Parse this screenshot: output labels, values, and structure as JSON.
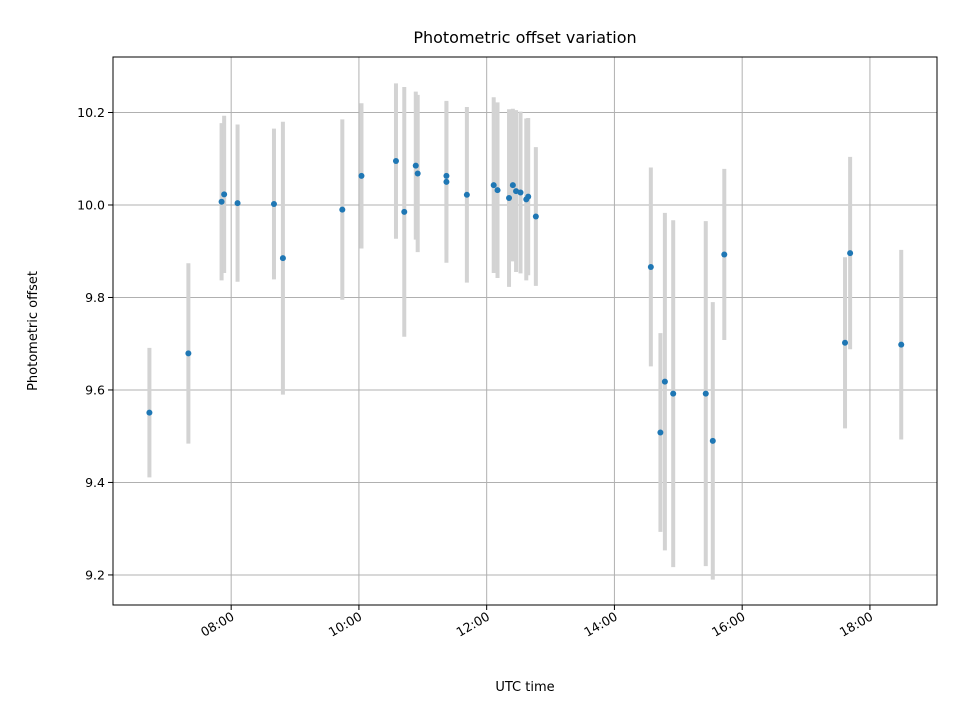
{
  "chart_data": {
    "type": "scatter",
    "title": "Photometric offset variation",
    "xlabel": "UTC time",
    "ylabel": "Photometric offset",
    "x_unit": "hours UTC",
    "xlim": [
      6.15,
      19.05
    ],
    "ylim": [
      9.135,
      10.32
    ],
    "x_ticks": [
      {
        "value": 8,
        "label": "08:00"
      },
      {
        "value": 10,
        "label": "10:00"
      },
      {
        "value": 12,
        "label": "12:00"
      },
      {
        "value": 14,
        "label": "14:00"
      },
      {
        "value": 16,
        "label": "16:00"
      },
      {
        "value": 18,
        "label": "18:00"
      }
    ],
    "y_ticks": [
      {
        "value": 9.2,
        "label": "9.2"
      },
      {
        "value": 9.4,
        "label": "9.4"
      },
      {
        "value": 9.6,
        "label": "9.6"
      },
      {
        "value": 9.8,
        "label": "9.8"
      },
      {
        "value": 10.0,
        "label": "10.0"
      },
      {
        "value": 10.2,
        "label": "10.2"
      }
    ],
    "grid": true,
    "point_color": "#1f77b4",
    "errorbar_color": "#d3d3d3",
    "points": [
      {
        "x": 6.72,
        "y": 9.551,
        "yerr": 0.14
      },
      {
        "x": 7.33,
        "y": 9.679,
        "yerr": 0.195
      },
      {
        "x": 7.85,
        "y": 10.007,
        "yerr": 0.17
      },
      {
        "x": 7.89,
        "y": 10.023,
        "yerr": 0.17
      },
      {
        "x": 8.1,
        "y": 10.004,
        "yerr": 0.17
      },
      {
        "x": 8.67,
        "y": 10.002,
        "yerr": 0.163
      },
      {
        "x": 8.81,
        "y": 9.885,
        "yerr": 0.295
      },
      {
        "x": 9.74,
        "y": 9.99,
        "yerr": 0.195
      },
      {
        "x": 10.04,
        "y": 10.063,
        "yerr": 0.157
      },
      {
        "x": 10.58,
        "y": 10.095,
        "yerr": 0.168
      },
      {
        "x": 10.71,
        "y": 9.985,
        "yerr": 0.27
      },
      {
        "x": 10.89,
        "y": 10.085,
        "yerr": 0.16
      },
      {
        "x": 10.92,
        "y": 10.068,
        "yerr": 0.17
      },
      {
        "x": 11.37,
        "y": 10.063,
        "yerr": 0.16
      },
      {
        "x": 11.37,
        "y": 10.05,
        "yerr": 0.175
      },
      {
        "x": 11.69,
        "y": 10.022,
        "yerr": 0.19
      },
      {
        "x": 12.11,
        "y": 10.043,
        "yerr": 0.19
      },
      {
        "x": 12.17,
        "y": 10.032,
        "yerr": 0.19
      },
      {
        "x": 12.35,
        "y": 10.015,
        "yerr": 0.192
      },
      {
        "x": 12.41,
        "y": 10.043,
        "yerr": 0.165
      },
      {
        "x": 12.46,
        "y": 10.03,
        "yerr": 0.175
      },
      {
        "x": 12.53,
        "y": 10.027,
        "yerr": 0.175
      },
      {
        "x": 12.62,
        "y": 10.012,
        "yerr": 0.175
      },
      {
        "x": 12.65,
        "y": 10.018,
        "yerr": 0.17
      },
      {
        "x": 12.77,
        "y": 9.975,
        "yerr": 0.15
      },
      {
        "x": 14.57,
        "y": 9.866,
        "yerr": 0.215
      },
      {
        "x": 14.72,
        "y": 9.508,
        "yerr": 0.215
      },
      {
        "x": 14.79,
        "y": 9.618,
        "yerr": 0.365
      },
      {
        "x": 14.92,
        "y": 9.592,
        "yerr": 0.375
      },
      {
        "x": 15.43,
        "y": 9.592,
        "yerr": 0.373
      },
      {
        "x": 15.54,
        "y": 9.49,
        "yerr": 0.3
      },
      {
        "x": 15.72,
        "y": 9.893,
        "yerr": 0.185
      },
      {
        "x": 17.61,
        "y": 9.702,
        "yerr": 0.185
      },
      {
        "x": 17.69,
        "y": 9.896,
        "yerr": 0.208
      },
      {
        "x": 18.49,
        "y": 9.698,
        "yerr": 0.205
      }
    ]
  }
}
